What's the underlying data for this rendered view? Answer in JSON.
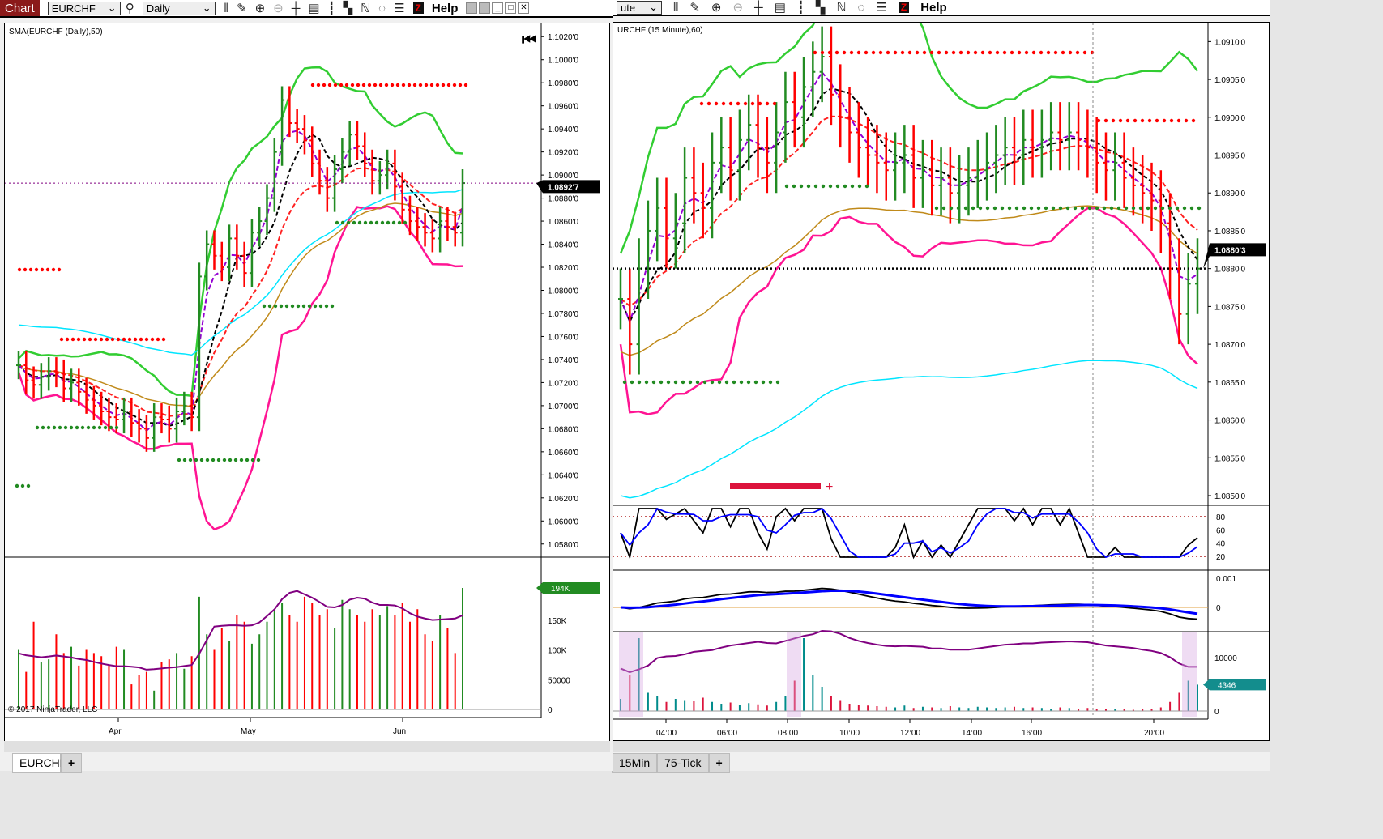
{
  "left": {
    "toolbar": {
      "chart_label": "Chart",
      "instrument": "EURCHF",
      "interval": "Daily",
      "help": "Help"
    },
    "indicator_label": "SMA(EURCHF (Daily),50)",
    "price_ticks": [
      "1.1020'0",
      "1.1000'0",
      "1.0980'0",
      "1.0960'0",
      "1.0940'0",
      "1.0920'0",
      "1.0900'0",
      "1.0880'0",
      "1.0860'0",
      "1.0840'0",
      "1.0820'0",
      "1.0800'0",
      "1.0780'0",
      "1.0760'0",
      "1.0740'0",
      "1.0720'0",
      "1.0700'0",
      "1.0680'0",
      "1.0660'0",
      "1.0640'0",
      "1.0620'0",
      "1.0600'0",
      "1.0580'0"
    ],
    "last_price": "1.0892'7",
    "volume_ticks": [
      "150K",
      "100K",
      "50000",
      "0"
    ],
    "last_volume": "194K",
    "copyright": "© 2017 NinjaTrader, LLC",
    "time_labels": [
      "Apr",
      "May",
      "Jun"
    ],
    "tabs": [
      "EURCHF",
      "+"
    ]
  },
  "right": {
    "toolbar": {
      "interval": "ute",
      "help": "Help"
    },
    "indicator_label": "URCHF (15 Minute),60)",
    "price_ticks": [
      "1.0910'0",
      "1.0905'0",
      "1.0900'0",
      "1.0895'0",
      "1.0890'0",
      "1.0885'0",
      "1.0880'0",
      "1.0875'0",
      "1.0870'0",
      "1.0865'0",
      "1.0860'0",
      "1.0855'0",
      "1.0850'0"
    ],
    "last_price": "1.0880'3",
    "stoch_ticks": [
      "80",
      "60",
      "40",
      "20"
    ],
    "macd_ticks": [
      "0.001",
      "0"
    ],
    "volume_ticks": [
      "10000",
      "0"
    ],
    "last_volume": "4346",
    "time_labels": [
      "04:00",
      "06:00",
      "08:00",
      "10:00",
      "12:00",
      "14:00",
      "16:00",
      "20:00"
    ],
    "tabs": [
      "15Min",
      "75-Tick",
      "+"
    ]
  },
  "chart_data": [
    {
      "type": "ohlc",
      "title": "EURCHF Daily",
      "closes": [
        1.0735,
        1.0722,
        1.0718,
        1.0725,
        1.073,
        1.0728,
        1.0715,
        1.072,
        1.0712,
        1.0705,
        1.07,
        1.0695,
        1.069,
        1.0688,
        1.0695,
        1.0685,
        1.068,
        1.0672,
        1.069,
        1.0688,
        1.068,
        1.0695,
        1.07,
        1.069,
        1.0812,
        1.084,
        1.083,
        1.082,
        1.0845,
        1.083,
        1.0815,
        1.085,
        1.086,
        1.088,
        1.092,
        1.0965,
        1.0945,
        1.094,
        1.093,
        1.091,
        1.0895,
        1.088,
        1.0905,
        1.092,
        1.0935,
        1.0925,
        1.091,
        1.0895,
        1.09,
        1.091,
        1.089,
        1.087,
        1.086,
        1.0855,
        1.085,
        1.0845,
        1.086,
        1.0855,
        1.085,
        1.0893
      ],
      "volumes": [
        95,
        60,
        140,
        75,
        80,
        120,
        90,
        100,
        70,
        95,
        90,
        85,
        70,
        100,
        95,
        40,
        55,
        60,
        30,
        75,
        80,
        90,
        65,
        85,
        180,
        120,
        95,
        130,
        110,
        150,
        140,
        105,
        120,
        140,
        160,
        170,
        150,
        140,
        180,
        170,
        150,
        160,
        130,
        175,
        160,
        150,
        140,
        160,
        150,
        165,
        150,
        170,
        140,
        160,
        120,
        110,
        150,
        130,
        90,
        194
      ],
      "ylim": [
        1.057,
        1.103
      ]
    },
    {
      "type": "ohlc",
      "title": "EURCHF 15 Minute",
      "closes": [
        1.0876,
        1.087,
        1.088,
        1.0885,
        1.0888,
        1.0884,
        1.0886,
        1.0892,
        1.089,
        1.0888,
        1.0894,
        1.0896,
        1.0893,
        1.0897,
        1.0899,
        1.0896,
        1.0894,
        1.0898,
        1.0902,
        1.09,
        1.0904,
        1.0906,
        1.0908,
        1.0903,
        1.09,
        1.0898,
        1.0896,
        1.0895,
        1.0894,
        1.0893,
        1.0894,
        1.0895,
        1.0892,
        1.0893,
        1.0891,
        1.0892,
        1.089,
        1.0891,
        1.0892,
        1.0893,
        1.0894,
        1.0895,
        1.0896,
        1.0895,
        1.0897,
        1.0896,
        1.0897,
        1.0898,
        1.0897,
        1.0898,
        1.0897,
        1.0896,
        1.0894,
        1.0893,
        1.0894,
        1.0892,
        1.0891,
        1.089,
        1.0889,
        1.0886,
        1.088,
        1.0874,
        1.0878,
        1.088
      ],
      "volumes": [
        2000,
        6000,
        12000,
        3000,
        2500,
        1500,
        2000,
        1800,
        1600,
        2200,
        1500,
        1200,
        1400,
        1000,
        1300,
        1100,
        900,
        1500,
        2500,
        5000,
        12000,
        6000,
        4000,
        2500,
        1800,
        1200,
        1000,
        900,
        800,
        700,
        600,
        900,
        500,
        700,
        600,
        500,
        800,
        600,
        500,
        700,
        600,
        500,
        600,
        700,
        500,
        600,
        500,
        400,
        600,
        500,
        400,
        500,
        400,
        300,
        400,
        300,
        200,
        300,
        400,
        600,
        1500,
        3000,
        5000,
        4346
      ],
      "ylim": [
        1.08485,
        1.09125
      ]
    }
  ],
  "colors": {
    "up": "#228b22",
    "down": "#ff0000",
    "sma": "#000000",
    "bb_upper": "#32cd32",
    "bb_lower": "#ff1493",
    "ema": "#9400d3",
    "slow": "#ff2020",
    "brown": "#c08a1a",
    "cyan": "#00e5ff"
  }
}
